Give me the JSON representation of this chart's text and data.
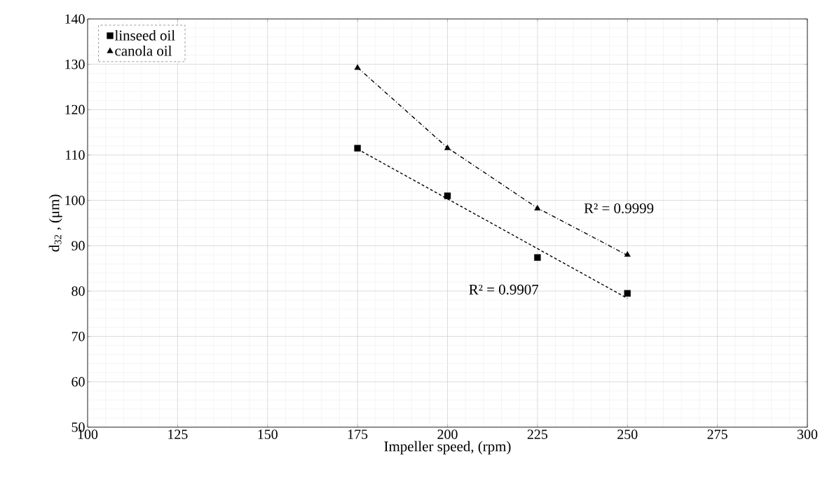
{
  "chart_data": {
    "type": "scatter",
    "xlabel": "Impeller speed, (rpm)",
    "ylabel": "d$_{32}$ , (μm)",
    "xlim": [
      100,
      300
    ],
    "xticks": [
      100,
      125,
      150,
      175,
      200,
      225,
      250,
      275,
      300
    ],
    "ylim": [
      50,
      140
    ],
    "yticks": [
      50,
      60,
      70,
      80,
      90,
      100,
      110,
      120,
      130,
      140
    ],
    "grid": true,
    "legend": "top left",
    "series": [
      {
        "name": "linseed oil",
        "marker": "square",
        "color": "#000000",
        "x": [
          175,
          200,
          225,
          250
        ],
        "values": [
          111.5,
          101,
          87.4,
          79.5
        ]
      },
      {
        "name": "canola oil",
        "marker": "triangle",
        "color": "#000000",
        "x": [
          175,
          200,
          225,
          250
        ],
        "values": [
          129.2,
          111.5,
          98.2,
          88.0
        ]
      },
      {
        "type": "line",
        "line_style": "dashed",
        "color": "#000000",
        "x": [
          175,
          250
        ],
        "values": [
          111.3,
          78.4
        ]
      },
      {
        "type": "line",
        "line_style": "dashdot",
        "color": "#000000",
        "x": [
          175,
          200,
          225,
          250
        ],
        "values": [
          129.3,
          111.6,
          98.3,
          87.9
        ]
      }
    ],
    "annotations": [
      "R² = 0.9999",
      "R² = 0.9907"
    ]
  }
}
